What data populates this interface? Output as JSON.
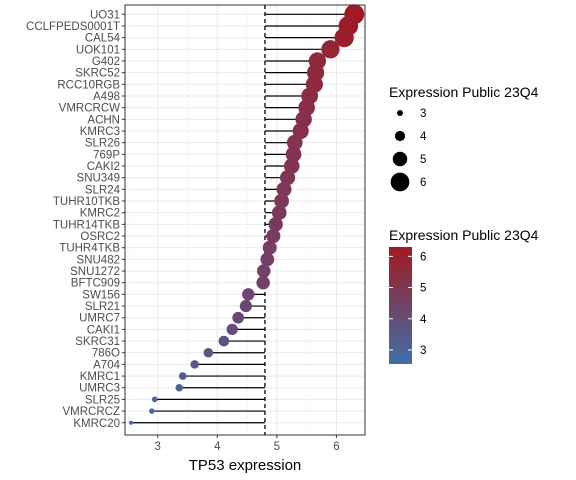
{
  "chart_data": {
    "type": "scatter",
    "xlabel": "TP53 expression",
    "xlim": [
      2.45,
      6.48
    ],
    "x_ticks": [
      3,
      4,
      5,
      6
    ],
    "reference_line_x": 4.8,
    "grid": true,
    "color_low": "#3e6fa8",
    "color_high": "#a11a22",
    "points": [
      {
        "label": "UO31",
        "x": 6.3
      },
      {
        "label": "CCLFPEDS0001T",
        "x": 6.2
      },
      {
        "label": "CAL54",
        "x": 6.13
      },
      {
        "label": "UOK101",
        "x": 5.9
      },
      {
        "label": "G402",
        "x": 5.68
      },
      {
        "label": "SKRC52",
        "x": 5.65
      },
      {
        "label": "RCC10RGB",
        "x": 5.63
      },
      {
        "label": "A498",
        "x": 5.55
      },
      {
        "label": "VMRCRCW",
        "x": 5.5
      },
      {
        "label": "ACHN",
        "x": 5.45
      },
      {
        "label": "KMRC3",
        "x": 5.4
      },
      {
        "label": "SLR26",
        "x": 5.3
      },
      {
        "label": "769P",
        "x": 5.28
      },
      {
        "label": "CAKI2",
        "x": 5.25
      },
      {
        "label": "SNU349",
        "x": 5.18
      },
      {
        "label": "SLR24",
        "x": 5.12
      },
      {
        "label": "TUHR10TKB",
        "x": 5.08
      },
      {
        "label": "KMRC2",
        "x": 5.04
      },
      {
        "label": "TUHR14TKB",
        "x": 4.98
      },
      {
        "label": "OSRC2",
        "x": 4.94
      },
      {
        "label": "TUHR4TKB",
        "x": 4.88
      },
      {
        "label": "SNU482",
        "x": 4.84
      },
      {
        "label": "SNU1272",
        "x": 4.78
      },
      {
        "label": "BFTC909",
        "x": 4.77
      },
      {
        "label": "SW156",
        "x": 4.52
      },
      {
        "label": "SLR21",
        "x": 4.48
      },
      {
        "label": "UMRC7",
        "x": 4.35
      },
      {
        "label": "CAKI1",
        "x": 4.25
      },
      {
        "label": "SKRC31",
        "x": 4.11
      },
      {
        "label": "786O",
        "x": 3.85
      },
      {
        "label": "A704",
        "x": 3.62
      },
      {
        "label": "KMRC1",
        "x": 3.42
      },
      {
        "label": "UMRC3",
        "x": 3.36
      },
      {
        "label": "SLR25",
        "x": 2.95
      },
      {
        "label": "VMRCRCZ",
        "x": 2.9
      },
      {
        "label": "KMRC20",
        "x": 2.55
      }
    ],
    "size_legend": {
      "title": "Expression Public 23Q4",
      "values": [
        3,
        4,
        5,
        6
      ]
    },
    "color_legend": {
      "title": "Expression Public 23Q4",
      "min": 2.55,
      "max": 6.3,
      "ticks": [
        3,
        4,
        5,
        6
      ]
    }
  }
}
